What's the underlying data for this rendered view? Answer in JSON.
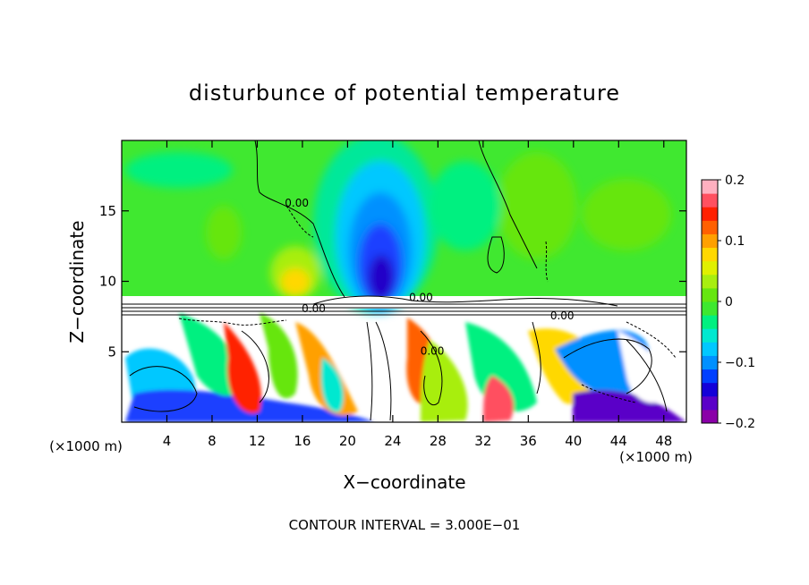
{
  "chart_data": {
    "type": "heatmap",
    "title": "disturbunce of potential temperature",
    "xlabel": "X−coordinate",
    "ylabel": "Z−coordinate",
    "x_unit_left": "(×1000 m)",
    "x_unit_right": "(×1000 m)",
    "footer": "CONTOUR INTERVAL = 3.000E−01",
    "xlim": [
      0,
      50
    ],
    "ylim": [
      0,
      20
    ],
    "x_ticks": [
      4,
      8,
      12,
      16,
      20,
      24,
      28,
      32,
      36,
      40,
      44,
      48
    ],
    "y_ticks": [
      5,
      10,
      15
    ],
    "colorbar": {
      "range": [
        -0.2,
        0.2
      ],
      "ticks": [
        {
          "value": 0.2,
          "label": "0.2"
        },
        {
          "value": 0.1,
          "label": "0.1"
        },
        {
          "value": 0.0,
          "label": "0"
        },
        {
          "value": -0.1,
          "label": "−0.1"
        },
        {
          "value": -0.2,
          "label": "−0.2"
        }
      ],
      "colors": [
        "#8a00a8",
        "#5a00c8",
        "#1400d8",
        "#0040ff",
        "#0090ff",
        "#00c8ff",
        "#00e8d0",
        "#00f080",
        "#3ee830",
        "#66e610",
        "#a8ee10",
        "#e0f000",
        "#ffd800",
        "#ffa000",
        "#ff6000",
        "#ff2000",
        "#ff5060",
        "#ffb0c0"
      ]
    },
    "contour_labels": [
      {
        "x": 17,
        "y": 7.8,
        "text": "0.00"
      },
      {
        "x": 26.5,
        "y": 8.6,
        "text": "0.00"
      },
      {
        "x": 39,
        "y": 7.3,
        "text": "0.00"
      },
      {
        "x": 15.5,
        "y": 15.3,
        "text": "0.00"
      },
      {
        "x": 27.5,
        "y": 4.8,
        "text": "0.00"
      }
    ]
  }
}
